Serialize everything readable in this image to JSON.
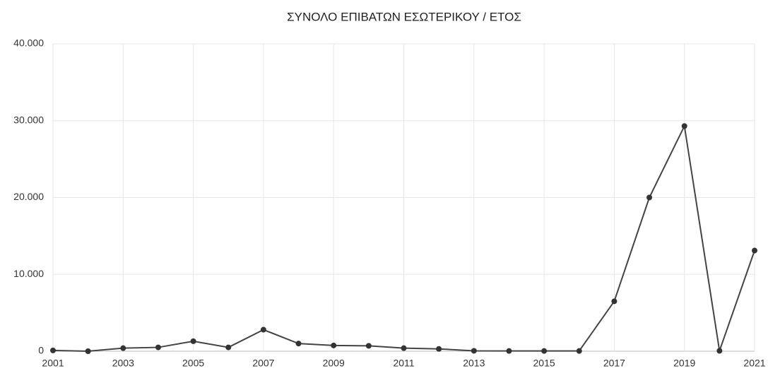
{
  "chart_data": {
    "type": "line",
    "title": "ΣΥΝΟΛΟ ΕΠΙΒΑΤΩΝ ΕΣΩΤΕΡΙΚΟΥ / ΕΤΟΣ",
    "x": [
      2001,
      2002,
      2003,
      2004,
      2005,
      2006,
      2007,
      2008,
      2009,
      2010,
      2011,
      2012,
      2013,
      2014,
      2015,
      2016,
      2017,
      2018,
      2019,
      2020,
      2021
    ],
    "values": [
      100,
      0,
      400,
      500,
      1300,
      500,
      2800,
      1000,
      750,
      700,
      400,
      300,
      50,
      30,
      30,
      30,
      6500,
      20000,
      29300,
      50,
      13100
    ],
    "color": "#444444",
    "xlim": [
      2001,
      2021
    ],
    "xticks": [
      2001,
      2003,
      2005,
      2007,
      2009,
      2011,
      2013,
      2015,
      2017,
      2019,
      2021
    ],
    "ylim": [
      0,
      40000
    ],
    "yticks": [
      0,
      {
        "value": 10000,
        "label": "10.000"
      },
      {
        "value": 20000,
        "label": "20.000"
      },
      {
        "value": 30000,
        "label": "30.000"
      },
      {
        "value": 40000,
        "label": "40.000"
      }
    ],
    "grid": true
  }
}
